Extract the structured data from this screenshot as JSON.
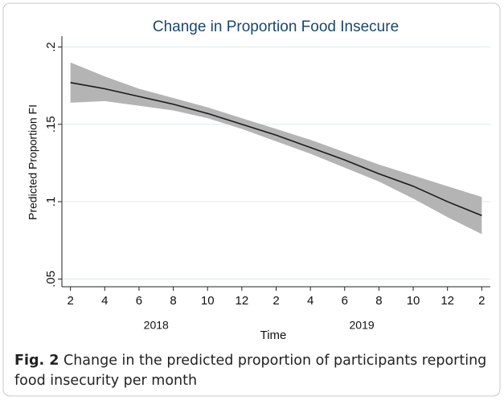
{
  "chart_data": {
    "type": "line",
    "title": "Change in Proportion Food Insecure",
    "xlabel": "Time",
    "ylabel": "Predicted Proportion FI",
    "x": [
      2,
      4,
      6,
      8,
      10,
      12,
      14,
      16,
      18,
      20,
      22,
      24,
      26
    ],
    "series": [
      {
        "color": "#1a1a1a",
        "values": [
          0.177,
          0.173,
          0.168,
          0.163,
          0.157,
          0.15,
          0.143,
          0.135,
          0.127,
          0.118,
          0.11,
          0.1,
          0.091
        ]
      }
    ],
    "band": {
      "color": "#b4b4b4",
      "lower": [
        0.164,
        0.165,
        0.162,
        0.159,
        0.154,
        0.147,
        0.139,
        0.131,
        0.122,
        0.113,
        0.102,
        0.09,
        0.079
      ],
      "upper": [
        0.19,
        0.181,
        0.173,
        0.167,
        0.161,
        0.154,
        0.147,
        0.14,
        0.132,
        0.124,
        0.117,
        0.11,
        0.103
      ]
    },
    "xlim": [
      1.5,
      26.5
    ],
    "xticks": [
      2,
      4,
      6,
      8,
      10,
      12,
      {
        "value": 14,
        "label": "2"
      },
      {
        "value": 16,
        "label": "4"
      },
      {
        "value": 18,
        "label": "6"
      },
      {
        "value": 20,
        "label": "8"
      },
      {
        "value": 22,
        "label": "10"
      },
      {
        "value": 24,
        "label": "12"
      },
      {
        "value": 26,
        "label": "2"
      }
    ],
    "ylim": [
      0.045,
      0.207
    ],
    "yticks": [
      {
        "value": 0.05,
        "label": ".05"
      },
      {
        "value": 0.1,
        "label": ".1"
      },
      {
        "value": 0.15,
        "label": ".15"
      },
      {
        "value": 0.2,
        "label": ".2"
      }
    ],
    "grid": true,
    "annotations": [
      {
        "x": 7,
        "text": "2018"
      },
      {
        "x": 19,
        "text": "2019"
      }
    ]
  },
  "caption": {
    "label": "Fig. 2",
    "text": " Change in the predicted proportion of participants reporting food insecurity per month"
  }
}
